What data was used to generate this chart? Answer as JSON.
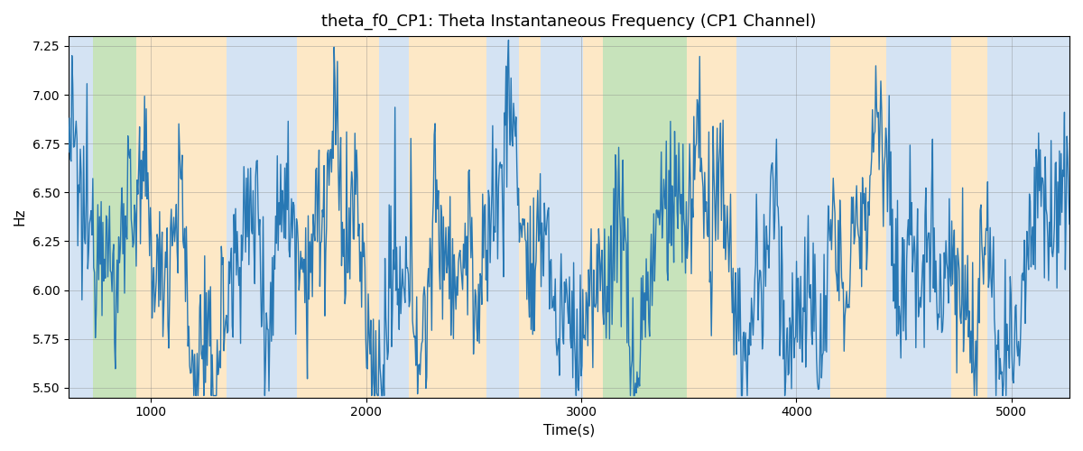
{
  "title": "theta_f0_CP1: Theta Instantaneous Frequency (CP1 Channel)",
  "xlabel": "Time(s)",
  "ylabel": "Hz",
  "ylim": [
    5.45,
    7.3
  ],
  "xlim": [
    617,
    5270
  ],
  "line_color": "#2878b4",
  "line_width": 1.0,
  "bg_regions": [
    {
      "xstart": 617,
      "xend": 730,
      "color": "#aac8e8",
      "alpha": 0.5
    },
    {
      "xstart": 730,
      "xend": 930,
      "color": "#90c878",
      "alpha": 0.5
    },
    {
      "xstart": 930,
      "xend": 1350,
      "color": "#fdd9a0",
      "alpha": 0.6
    },
    {
      "xstart": 1350,
      "xend": 1680,
      "color": "#aac8e8",
      "alpha": 0.5
    },
    {
      "xstart": 1680,
      "xend": 2060,
      "color": "#fdd9a0",
      "alpha": 0.6
    },
    {
      "xstart": 2060,
      "xend": 2200,
      "color": "#aac8e8",
      "alpha": 0.5
    },
    {
      "xstart": 2200,
      "xend": 2560,
      "color": "#fdd9a0",
      "alpha": 0.6
    },
    {
      "xstart": 2560,
      "xend": 2710,
      "color": "#aac8e8",
      "alpha": 0.5
    },
    {
      "xstart": 2710,
      "xend": 2810,
      "color": "#fdd9a0",
      "alpha": 0.6
    },
    {
      "xstart": 2810,
      "xend": 3010,
      "color": "#aac8e8",
      "alpha": 0.5
    },
    {
      "xstart": 3010,
      "xend": 3100,
      "color": "#fdd9a0",
      "alpha": 0.6
    },
    {
      "xstart": 3100,
      "xend": 3490,
      "color": "#90c878",
      "alpha": 0.5
    },
    {
      "xstart": 3490,
      "xend": 3720,
      "color": "#fdd9a0",
      "alpha": 0.6
    },
    {
      "xstart": 3720,
      "xend": 4160,
      "color": "#aac8e8",
      "alpha": 0.5
    },
    {
      "xstart": 4160,
      "xend": 4420,
      "color": "#fdd9a0",
      "alpha": 0.6
    },
    {
      "xstart": 4420,
      "xend": 4720,
      "color": "#aac8e8",
      "alpha": 0.5
    },
    {
      "xstart": 4720,
      "xend": 4890,
      "color": "#fdd9a0",
      "alpha": 0.6
    },
    {
      "xstart": 4890,
      "xend": 5270,
      "color": "#aac8e8",
      "alpha": 0.5
    }
  ],
  "seed": 12345,
  "n_points": 1200,
  "x_start": 617,
  "x_end": 5270,
  "yticks": [
    5.5,
    5.75,
    6.0,
    6.25,
    6.5,
    6.75,
    7.0,
    7.25
  ],
  "xticks": [
    1000,
    2000,
    3000,
    4000,
    5000
  ],
  "figsize": [
    12.0,
    5.0
  ],
  "dpi": 100
}
